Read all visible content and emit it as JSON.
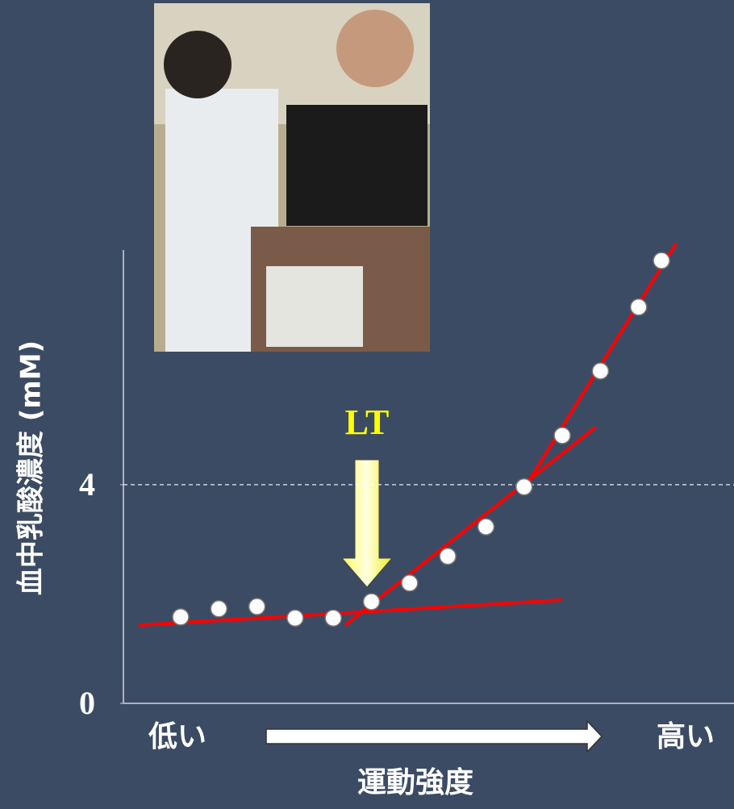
{
  "chart_data": {
    "type": "scatter",
    "y_label": "血中乳酸濃度 (mM)",
    "x_label": "運動強度",
    "x_label_low": "低い",
    "x_label_high": "高い",
    "annotation": "LT",
    "x": [
      1,
      2,
      3,
      4,
      5,
      6,
      7,
      8,
      9,
      10,
      11,
      12,
      13,
      13.6
    ],
    "values": [
      1.58,
      1.73,
      1.77,
      1.56,
      1.56,
      1.86,
      2.2,
      2.69,
      3.23,
      3.96,
      4.9,
      6.08,
      7.25,
      8.1
    ],
    "color": "#ffffff",
    "xlim": [
      -0.5,
      15.5
    ],
    "ylim": [
      0,
      8.5
    ],
    "yticks": [
      0,
      4
    ],
    "reference_y": 4,
    "fit_lines": [
      {
        "x": [
          -0.1,
          11.0
        ],
        "y": [
          1.43,
          1.89
        ],
        "color": "#ff0000"
      },
      {
        "x": [
          5.31,
          11.87
        ],
        "y": [
          1.43,
          5.05
        ],
        "color": "#ff0000"
      },
      {
        "x": [
          10.07,
          13.98
        ],
        "y": [
          4.01,
          8.41
        ],
        "color": "#ff0000"
      }
    ]
  }
}
